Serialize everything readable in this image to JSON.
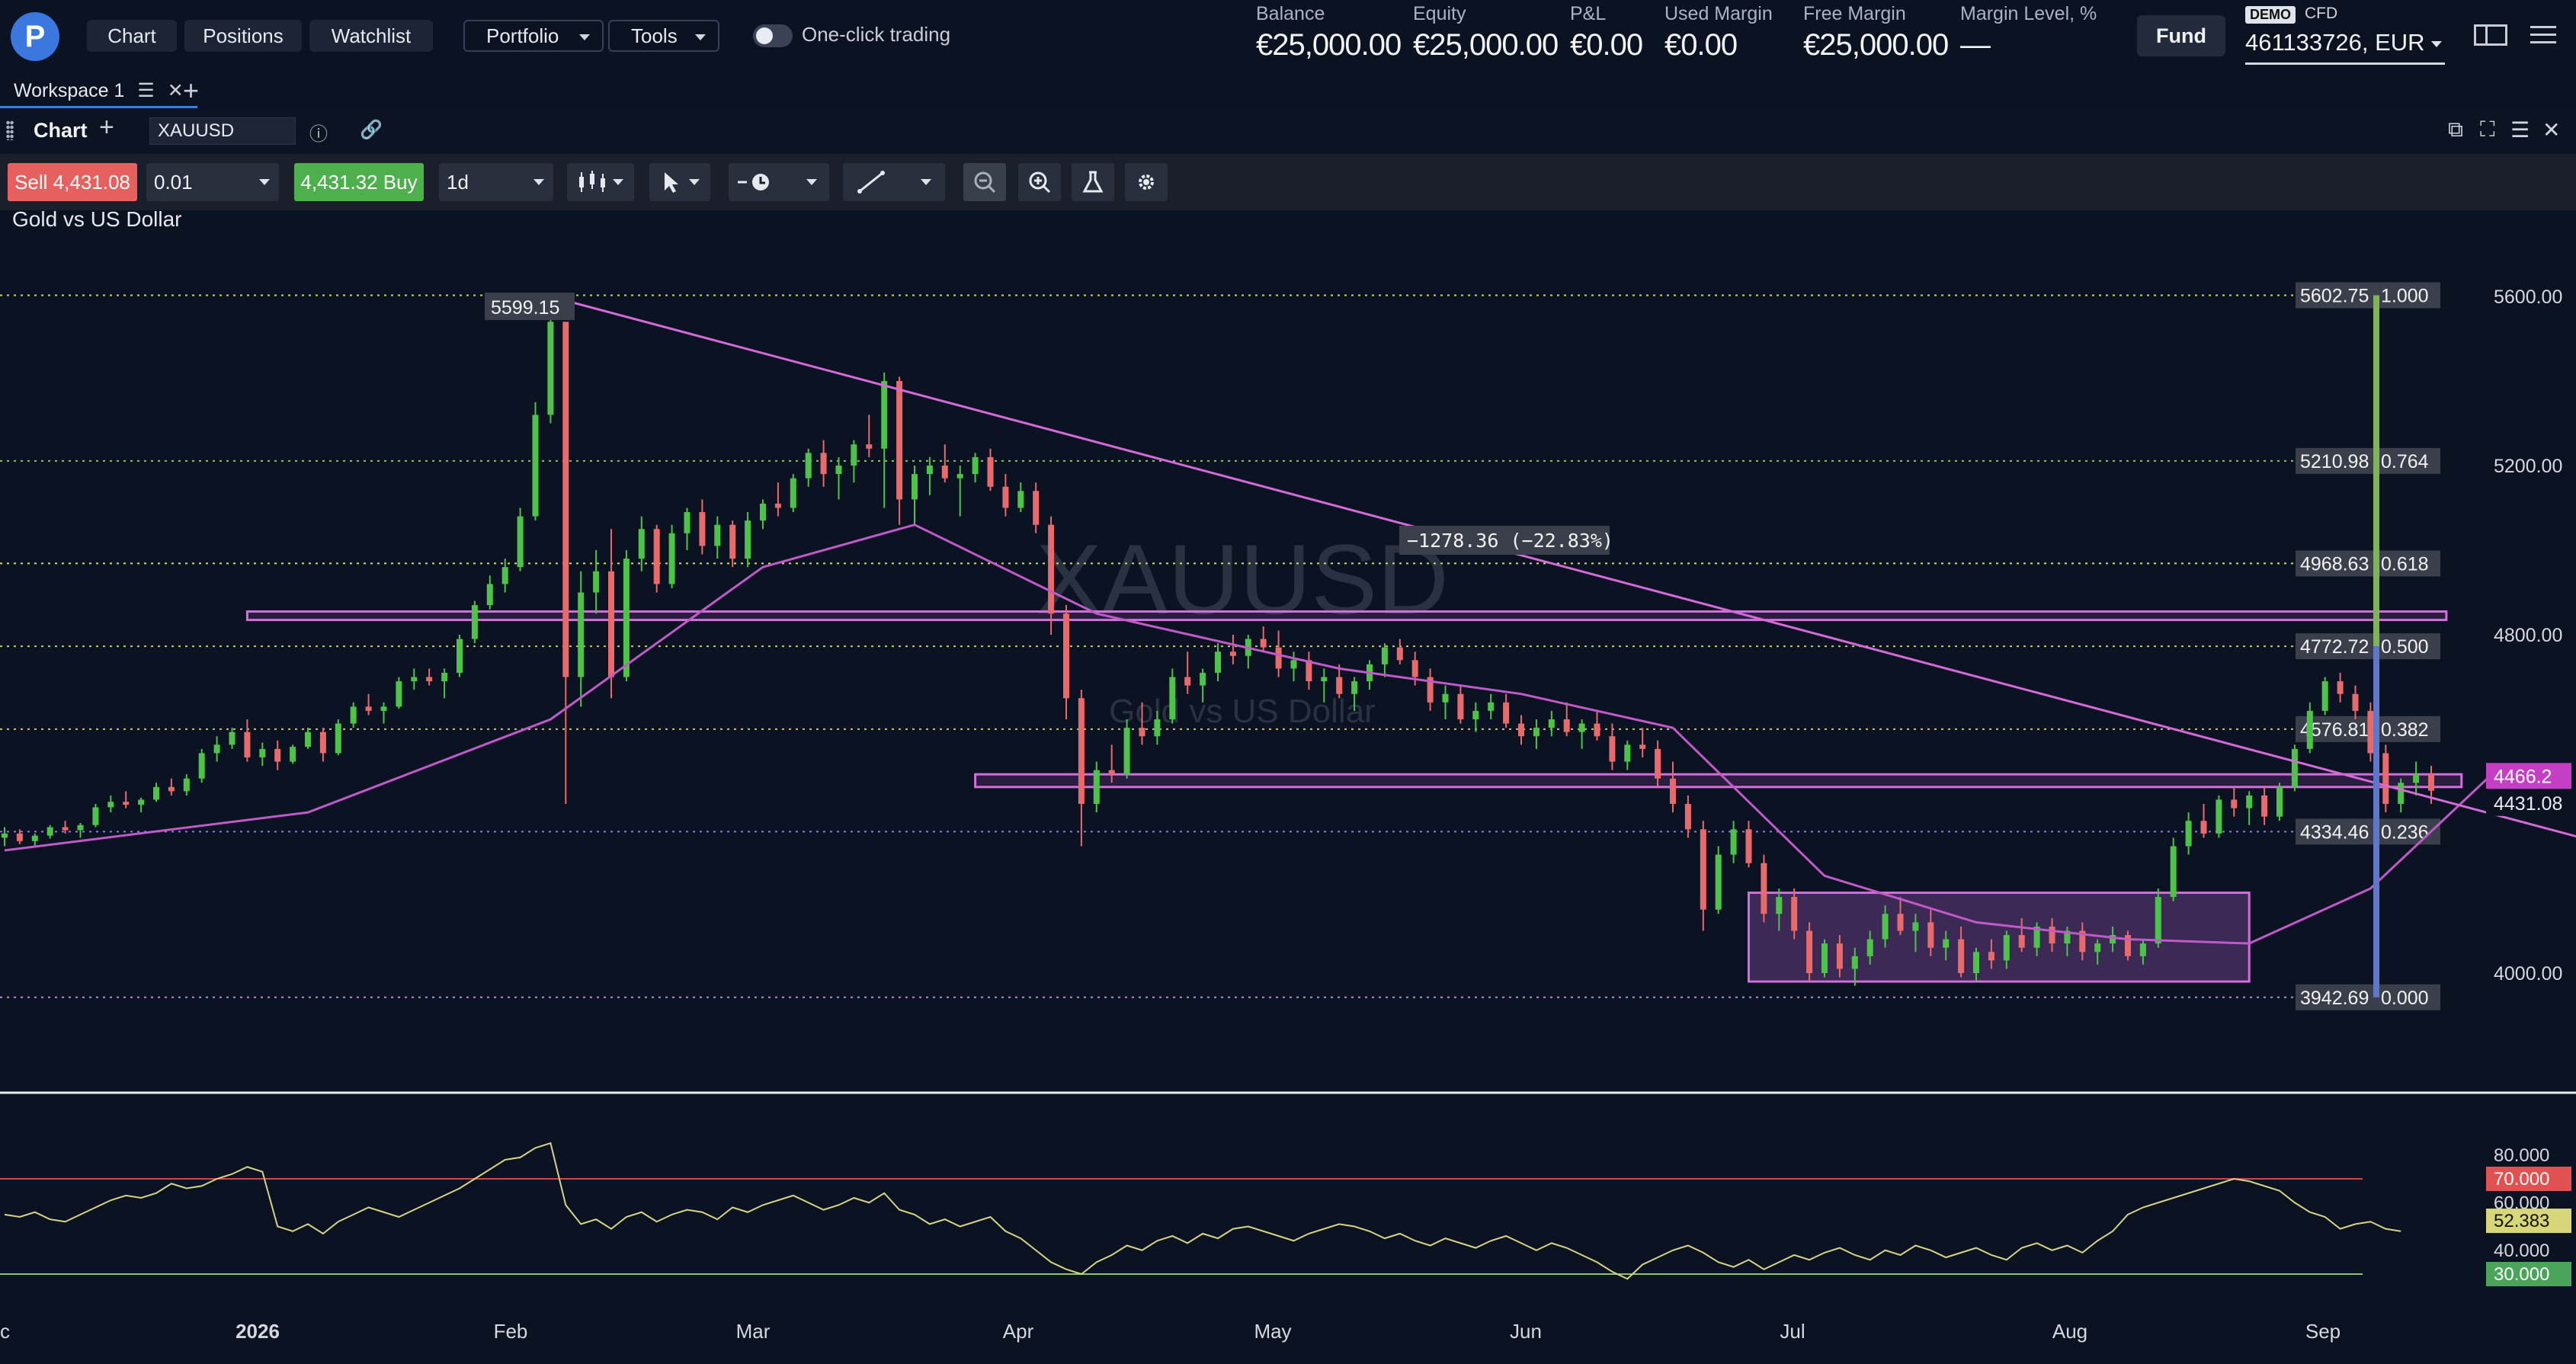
{
  "header": {
    "nav": [
      "Chart",
      "Positions",
      "Watchlist"
    ],
    "dropdowns": [
      "Portfolio",
      "Tools"
    ],
    "toggle_label": "One-click trading",
    "stats": [
      {
        "label": "Balance",
        "value": "€25,000.00"
      },
      {
        "label": "Equity",
        "value": "€25,000.00"
      },
      {
        "label": "P&L",
        "value": "€0.00"
      },
      {
        "label": "Used Margin",
        "value": "€0.00"
      },
      {
        "label": "Free Margin",
        "value": "€25,000.00"
      },
      {
        "label": "Margin Level, %",
        "value": "—"
      }
    ],
    "fund_label": "Fund",
    "demo_badge": "DEMO",
    "account_type": "CFD",
    "account": "461133726, EUR"
  },
  "tabs": {
    "workspace": "Workspace 1"
  },
  "chart_header": {
    "title": "Chart",
    "symbol": "XAUUSD"
  },
  "toolbar": {
    "sell_label": "Sell 4,431.08",
    "buy_label": "4,431.32 Buy",
    "quantity": "0.01",
    "timeframe": "1d"
  },
  "instrument": {
    "name": "Gold vs US Dollar",
    "watermark_symbol": "XAUUSD",
    "watermark_name": "Gold vs US Dollar"
  },
  "chart_data": {
    "type": "candlestick",
    "symbol": "XAUUSD",
    "x_ticks": [
      "c",
      "2026",
      "Feb",
      "Mar",
      "Apr",
      "May",
      "Jun",
      "Jul",
      "Aug",
      "Sep"
    ],
    "y_ticks": [
      "5600.00",
      "5200.00",
      "4800.00",
      "4400.00",
      "4000.00"
    ],
    "ylim": [
      3790,
      5780
    ],
    "candles_ohlc": [
      [
        4320,
        4345,
        4300,
        4330
      ],
      [
        4330,
        4340,
        4305,
        4312
      ],
      [
        4312,
        4330,
        4300,
        4325
      ],
      [
        4325,
        4350,
        4318,
        4345
      ],
      [
        4345,
        4360,
        4330,
        4338
      ],
      [
        4338,
        4355,
        4320,
        4350
      ],
      [
        4350,
        4400,
        4345,
        4392
      ],
      [
        4392,
        4420,
        4380,
        4405
      ],
      [
        4405,
        4430,
        4390,
        4398
      ],
      [
        4398,
        4415,
        4380,
        4410
      ],
      [
        4410,
        4450,
        4405,
        4440
      ],
      [
        4440,
        4460,
        4420,
        4430
      ],
      [
        4430,
        4470,
        4420,
        4460
      ],
      [
        4460,
        4530,
        4450,
        4520
      ],
      [
        4520,
        4560,
        4500,
        4540
      ],
      [
        4540,
        4580,
        4530,
        4570
      ],
      [
        4570,
        4600,
        4500,
        4510
      ],
      [
        4510,
        4545,
        4490,
        4530
      ],
      [
        4530,
        4550,
        4480,
        4500
      ],
      [
        4500,
        4540,
        4495,
        4535
      ],
      [
        4535,
        4580,
        4530,
        4570
      ],
      [
        4570,
        4580,
        4500,
        4520
      ],
      [
        4520,
        4600,
        4515,
        4590
      ],
      [
        4590,
        4640,
        4580,
        4630
      ],
      [
        4630,
        4660,
        4610,
        4620
      ],
      [
        4620,
        4640,
        4590,
        4630
      ],
      [
        4630,
        4700,
        4625,
        4690
      ],
      [
        4690,
        4720,
        4670,
        4700
      ],
      [
        4700,
        4720,
        4680,
        4690
      ],
      [
        4690,
        4720,
        4650,
        4710
      ],
      [
        4710,
        4800,
        4700,
        4790
      ],
      [
        4790,
        4880,
        4780,
        4870
      ],
      [
        4870,
        4940,
        4860,
        4920
      ],
      [
        4920,
        4980,
        4900,
        4960
      ],
      [
        4960,
        5100,
        4950,
        5080
      ],
      [
        5080,
        5350,
        5070,
        5320
      ],
      [
        5320,
        5599,
        5300,
        5540
      ],
      [
        5540,
        5520,
        4400,
        4700
      ],
      [
        4700,
        4950,
        4630,
        4900
      ],
      [
        4900,
        5000,
        4850,
        4950
      ],
      [
        4950,
        5050,
        4650,
        4700
      ],
      [
        4700,
        5000,
        4690,
        4980
      ],
      [
        4980,
        5080,
        4950,
        5050
      ],
      [
        5050,
        5060,
        4900,
        4920
      ],
      [
        4920,
        5060,
        4910,
        5040
      ],
      [
        5040,
        5100,
        5000,
        5090
      ],
      [
        5090,
        5120,
        4990,
        5010
      ],
      [
        5010,
        5080,
        4980,
        5060
      ],
      [
        5060,
        5070,
        4960,
        4980
      ],
      [
        4980,
        5090,
        4960,
        5070
      ],
      [
        5070,
        5120,
        5050,
        5110
      ],
      [
        5110,
        5160,
        5080,
        5100
      ],
      [
        5100,
        5180,
        5090,
        5170
      ],
      [
        5170,
        5240,
        5150,
        5230
      ],
      [
        5230,
        5260,
        5150,
        5180
      ],
      [
        5180,
        5220,
        5120,
        5200
      ],
      [
        5200,
        5260,
        5160,
        5250
      ],
      [
        5250,
        5320,
        5220,
        5240
      ],
      [
        5240,
        5420,
        5100,
        5400
      ],
      [
        5400,
        5410,
        5060,
        5120
      ],
      [
        5120,
        5200,
        5060,
        5180
      ],
      [
        5180,
        5220,
        5130,
        5200
      ],
      [
        5200,
        5250,
        5160,
        5170
      ],
      [
        5170,
        5200,
        5080,
        5180
      ],
      [
        5180,
        5230,
        5160,
        5220
      ],
      [
        5220,
        5240,
        5140,
        5150
      ],
      [
        5150,
        5180,
        5080,
        5100
      ],
      [
        5100,
        5160,
        5090,
        5140
      ],
      [
        5140,
        5160,
        5040,
        5060
      ],
      [
        5060,
        5080,
        4800,
        4850
      ],
      [
        4850,
        4870,
        4600,
        4650
      ],
      [
        4650,
        4670,
        4300,
        4400
      ],
      [
        4400,
        4500,
        4380,
        4480
      ],
      [
        4480,
        4540,
        4450,
        4470
      ],
      [
        4470,
        4600,
        4460,
        4580
      ],
      [
        4580,
        4640,
        4540,
        4560
      ],
      [
        4560,
        4620,
        4540,
        4600
      ],
      [
        4600,
        4720,
        4590,
        4700
      ],
      [
        4700,
        4760,
        4660,
        4680
      ],
      [
        4680,
        4720,
        4640,
        4710
      ],
      [
        4710,
        4780,
        4690,
        4760
      ],
      [
        4760,
        4800,
        4730,
        4750
      ],
      [
        4750,
        4800,
        4720,
        4790
      ],
      [
        4790,
        4820,
        4760,
        4770
      ],
      [
        4770,
        4810,
        4700,
        4720
      ],
      [
        4720,
        4760,
        4690,
        4740
      ],
      [
        4740,
        4760,
        4670,
        4690
      ],
      [
        4690,
        4720,
        4640,
        4700
      ],
      [
        4700,
        4730,
        4650,
        4660
      ],
      [
        4660,
        4700,
        4620,
        4690
      ],
      [
        4690,
        4740,
        4670,
        4730
      ],
      [
        4730,
        4780,
        4700,
        4770
      ],
      [
        4770,
        4790,
        4730,
        4740
      ],
      [
        4740,
        4760,
        4680,
        4700
      ],
      [
        4700,
        4720,
        4620,
        4640
      ],
      [
        4640,
        4680,
        4600,
        4660
      ],
      [
        4660,
        4680,
        4590,
        4600
      ],
      [
        4600,
        4640,
        4570,
        4620
      ],
      [
        4620,
        4660,
        4600,
        4640
      ],
      [
        4640,
        4660,
        4580,
        4590
      ],
      [
        4590,
        4610,
        4540,
        4560
      ],
      [
        4560,
        4600,
        4530,
        4580
      ],
      [
        4580,
        4620,
        4560,
        4600
      ],
      [
        4600,
        4640,
        4560,
        4570
      ],
      [
        4570,
        4600,
        4530,
        4590
      ],
      [
        4590,
        4620,
        4550,
        4560
      ],
      [
        4560,
        4590,
        4480,
        4500
      ],
      [
        4500,
        4550,
        4480,
        4540
      ],
      [
        4540,
        4580,
        4510,
        4530
      ],
      [
        4530,
        4550,
        4440,
        4460
      ],
      [
        4460,
        4500,
        4380,
        4400
      ],
      [
        4400,
        4420,
        4320,
        4340
      ],
      [
        4340,
        4360,
        4100,
        4150
      ],
      [
        4150,
        4300,
        4140,
        4280
      ],
      [
        4280,
        4360,
        4260,
        4340
      ],
      [
        4340,
        4360,
        4250,
        4260
      ],
      [
        4260,
        4280,
        4120,
        4140
      ],
      [
        4140,
        4200,
        4100,
        4180
      ],
      [
        4180,
        4200,
        4080,
        4100
      ],
      [
        4100,
        4120,
        3980,
        4000
      ],
      [
        4000,
        4080,
        3990,
        4070
      ],
      [
        4070,
        4090,
        3990,
        4010
      ],
      [
        4010,
        4060,
        3970,
        4040
      ],
      [
        4040,
        4100,
        4020,
        4080
      ],
      [
        4080,
        4160,
        4060,
        4140
      ],
      [
        4140,
        4180,
        4090,
        4100
      ],
      [
        4100,
        4140,
        4050,
        4120
      ],
      [
        4120,
        4150,
        4040,
        4060
      ],
      [
        4060,
        4100,
        4030,
        4080
      ],
      [
        4080,
        4110,
        3990,
        4000
      ],
      [
        4000,
        4060,
        3980,
        4050
      ],
      [
        4050,
        4080,
        4010,
        4030
      ],
      [
        4030,
        4100,
        4010,
        4090
      ],
      [
        4090,
        4130,
        4050,
        4060
      ],
      [
        4060,
        4120,
        4040,
        4110
      ],
      [
        4110,
        4130,
        4050,
        4070
      ],
      [
        4070,
        4110,
        4040,
        4100
      ],
      [
        4100,
        4120,
        4030,
        4050
      ],
      [
        4050,
        4080,
        4020,
        4070
      ],
      [
        4070,
        4110,
        4050,
        4090
      ],
      [
        4090,
        4100,
        4030,
        4040
      ],
      [
        4040,
        4080,
        4020,
        4070
      ],
      [
        4070,
        4200,
        4060,
        4180
      ],
      [
        4180,
        4320,
        4170,
        4300
      ],
      [
        4300,
        4380,
        4280,
        4360
      ],
      [
        4360,
        4400,
        4320,
        4330
      ],
      [
        4330,
        4420,
        4320,
        4410
      ],
      [
        4410,
        4440,
        4370,
        4390
      ],
      [
        4390,
        4430,
        4350,
        4420
      ],
      [
        4420,
        4440,
        4350,
        4370
      ],
      [
        4370,
        4450,
        4360,
        4440
      ],
      [
        4440,
        4540,
        4430,
        4530
      ],
      [
        4530,
        4640,
        4520,
        4620
      ],
      [
        4620,
        4700,
        4610,
        4690
      ],
      [
        4690,
        4710,
        4640,
        4660
      ],
      [
        4660,
        4680,
        4600,
        4620
      ],
      [
        4620,
        4640,
        4500,
        4520
      ],
      [
        4520,
        4540,
        4380,
        4400
      ],
      [
        4400,
        4460,
        4380,
        4450
      ],
      [
        4450,
        4500,
        4420,
        4470
      ],
      [
        4470,
        4490,
        4400,
        4431
      ]
    ],
    "ma_line": [
      [
        0,
        4290
      ],
      [
        20,
        4380
      ],
      [
        36,
        4600
      ],
      [
        50,
        4960
      ],
      [
        60,
        5060
      ],
      [
        72,
        4850
      ],
      [
        88,
        4720
      ],
      [
        100,
        4660
      ],
      [
        110,
        4580
      ],
      [
        120,
        4230
      ],
      [
        130,
        4120
      ],
      [
        140,
        4080
      ],
      [
        148,
        4070
      ],
      [
        156,
        4200
      ],
      [
        164,
        4470
      ]
    ],
    "levels": [
      {
        "price": "5602.75",
        "ratio": "1.000",
        "color": "#c8d95a",
        "dash": "dots"
      },
      {
        "price": "5210.98",
        "ratio": "0.764",
        "color": "#8dc45a",
        "dash": "dots"
      },
      {
        "price": "4968.63",
        "ratio": "0.618",
        "color": "#d7d96b",
        "dash": "dots"
      },
      {
        "price": "4772.72",
        "ratio": "0.500",
        "color": "#c8c86a",
        "dash": "dots"
      },
      {
        "price": "4576.81",
        "ratio": "0.382",
        "color": "#d0c070",
        "dash": "dots"
      },
      {
        "price": "4334.46",
        "ratio": "0.236",
        "color": "#8a7de0",
        "dash": "dots"
      },
      {
        "price": "3942.69",
        "ratio": "0.000",
        "color": "#b58be0",
        "dash": "dots"
      }
    ],
    "price_labels": {
      "peak": "5599.15",
      "measure": "−1278.36 (−22.83%)",
      "last_bid": "4466.2",
      "current": "4431.08"
    },
    "zones": [
      {
        "from_idx": 16,
        "to_idx": 161,
        "low": 4835,
        "high": 4855
      },
      {
        "from_idx": 64,
        "to_idx": 162,
        "low": 4440,
        "high": 4470
      },
      {
        "from_idx": 115,
        "to_idx": 148,
        "low": 3980,
        "high": 4190
      }
    ],
    "trendline": [
      [
        37,
        5590
      ],
      [
        172,
        4300
      ]
    ],
    "rsi": {
      "levels": [
        "80.000",
        "70.000",
        "60.000",
        "52.383",
        "40.000",
        "30.000"
      ],
      "label_colors": {
        "70.000": "#e05252",
        "52.383": "#d7d77a",
        "30.000": "#4aa55a"
      },
      "ylim": [
        20,
        90
      ],
      "values": [
        55,
        54,
        56,
        53,
        52,
        55,
        58,
        61,
        63,
        62,
        64,
        68,
        66,
        67,
        70,
        72,
        75,
        73,
        50,
        48,
        51,
        47,
        52,
        55,
        58,
        56,
        54,
        57,
        60,
        63,
        66,
        70,
        74,
        78,
        79,
        83,
        85,
        59,
        51,
        53,
        49,
        54,
        56,
        52,
        55,
        57,
        56,
        53,
        58,
        56,
        59,
        61,
        63,
        60,
        57,
        59,
        62,
        60,
        64,
        57,
        55,
        51,
        53,
        50,
        52,
        54,
        48,
        45,
        40,
        35,
        32,
        30,
        35,
        38,
        42,
        40,
        44,
        46,
        43,
        47,
        45,
        49,
        50,
        48,
        46,
        44,
        47,
        49,
        51,
        50,
        48,
        45,
        47,
        44,
        42,
        45,
        43,
        41,
        44,
        46,
        43,
        40,
        43,
        41,
        38,
        35,
        31,
        28,
        34,
        37,
        40,
        42,
        39,
        35,
        33,
        36,
        32,
        35,
        38,
        36,
        39,
        41,
        38,
        36,
        40,
        38,
        42,
        40,
        37,
        39,
        41,
        38,
        36,
        41,
        43,
        40,
        42,
        39,
        44,
        48,
        55,
        58,
        60,
        62,
        64,
        66,
        68,
        70,
        69,
        67,
        65,
        60,
        56,
        54,
        49,
        51,
        52,
        49,
        48
      ]
    }
  }
}
